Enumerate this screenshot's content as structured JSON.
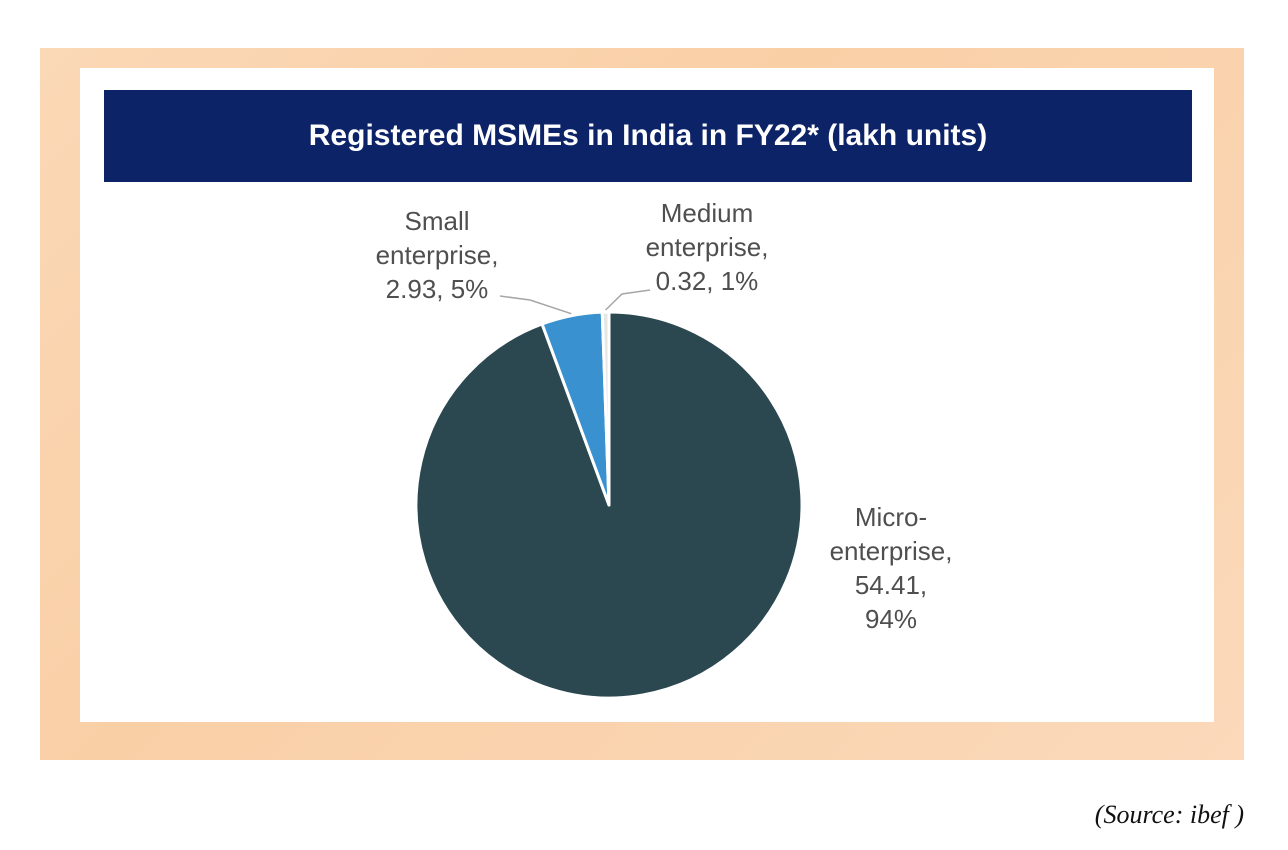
{
  "chart_data": {
    "type": "pie",
    "title": "Registered MSMEs in India in FY22* (lakh units)",
    "slices": [
      {
        "label_lines": [
          "Micro-",
          "enterprise,",
          "54.41,",
          "94%"
        ],
        "value": 54.41,
        "percent": 94,
        "color": "#2b4850"
      },
      {
        "label_lines": [
          "Small",
          "enterprise,",
          "2.93, 5%"
        ],
        "value": 2.93,
        "percent": 5,
        "color": "#3a91d0"
      },
      {
        "label_lines": [
          "Medium",
          "enterprise,",
          "0.32, 1%"
        ],
        "value": 0.32,
        "percent": 1,
        "color": "#e6e6e6"
      }
    ]
  },
  "source": "(Source: ibef )"
}
